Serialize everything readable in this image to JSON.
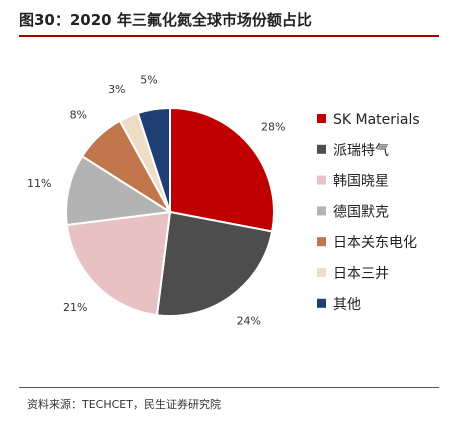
{
  "figure": {
    "title": "图30：2020 年三氟化氮全球市场份额占比",
    "source": "资料来源：TECHCET，民生证券研究院"
  },
  "chart_data": {
    "type": "pie",
    "title": "图30：2020 年三氟化氮全球市场份额占比",
    "start_angle": "12 o'clock",
    "direction": "clockwise",
    "legend_position": "right",
    "slices": [
      {
        "label": "SK Materials",
        "value": 28,
        "data_label": "28%",
        "color": "#c00000"
      },
      {
        "label": "派瑞特气",
        "value": 24,
        "data_label": "24%",
        "color": "#4d4d4d"
      },
      {
        "label": "韩国晓星",
        "value": 21,
        "data_label": "21%",
        "color": "#e8c2c2"
      },
      {
        "label": "德国默克",
        "value": 11,
        "data_label": "11%",
        "color": "#b3b3b3"
      },
      {
        "label": "日本关东电化",
        "value": 8,
        "data_label": "8%",
        "color": "#c0754a"
      },
      {
        "label": "日本三井",
        "value": 3,
        "data_label": "3%",
        "color": "#eedcc5"
      },
      {
        "label": "其他",
        "value": 5,
        "data_label": "5%",
        "color": "#1f3f73"
      }
    ]
  }
}
